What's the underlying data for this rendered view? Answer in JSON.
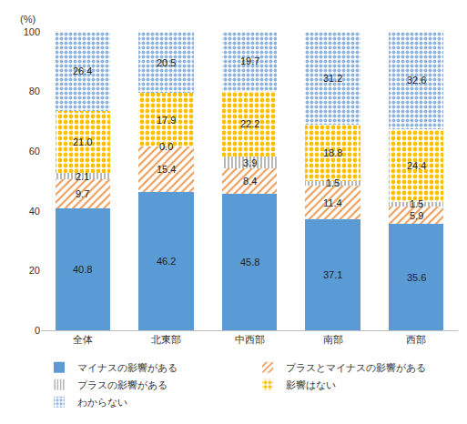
{
  "chart_data": {
    "type": "bar",
    "stacked": true,
    "data_labels": true,
    "grid": false,
    "legend": "bottom",
    "ylabel": "(%)",
    "categories": [
      "全体",
      "北東部",
      "中西部",
      "南部",
      "西部"
    ],
    "ylim": [
      0,
      100
    ],
    "yticks": [
      0,
      20,
      40,
      60,
      80,
      100
    ],
    "series": [
      {
        "name": "マイナスの影響がある",
        "color": "#5b9bd5",
        "values": [
          40.8,
          46.2,
          45.8,
          37.1,
          35.6
        ],
        "value_labels": [
          "40.8",
          "46.2",
          "45.8",
          "37.1",
          "35.6"
        ]
      },
      {
        "name": "プラスとマイナスの影響がある",
        "color": "#ed9a55",
        "values": [
          9.7,
          15.4,
          8.4,
          11.4,
          5.9
        ],
        "value_labels": [
          "9.7",
          "15.4",
          "8.4",
          "11.4",
          "5.9"
        ]
      },
      {
        "name": "プラスの影響がある",
        "color": "#9a9a9a",
        "values": [
          2.1,
          0.0,
          3.9,
          1.5,
          1.5
        ],
        "value_labels": [
          "2.1",
          "0.0",
          "3.9",
          "1.5",
          "1.5"
        ]
      },
      {
        "name": "影響はない",
        "color": "#ffc000",
        "values": [
          21.0,
          17.9,
          22.2,
          18.8,
          24.4
        ],
        "value_labels": [
          "21.0",
          "17.9",
          "22.2",
          "18.8",
          "24.4"
        ]
      },
      {
        "name": "わからない",
        "color": "#8fb4de",
        "values": [
          26.4,
          20.5,
          19.7,
          31.2,
          32.6
        ],
        "value_labels": [
          "26.4",
          "20.5",
          "19.7",
          "31.2",
          "32.6"
        ]
      }
    ]
  }
}
